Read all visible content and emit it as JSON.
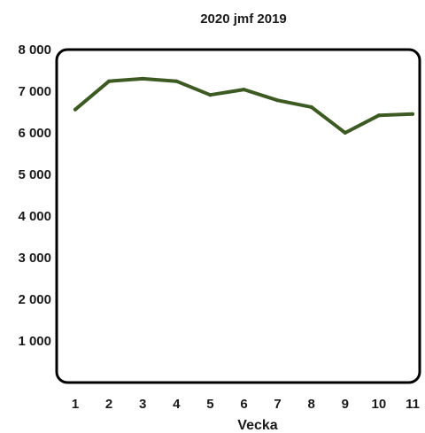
{
  "chart_data": {
    "type": "line",
    "title": "2020 jmf 2019",
    "xlabel": "Vecka",
    "ylabel": "",
    "categories": [
      "1",
      "2",
      "3",
      "4",
      "5",
      "6",
      "7",
      "8",
      "9",
      "10",
      "11"
    ],
    "values": [
      6560,
      7240,
      7300,
      7240,
      6910,
      7040,
      6780,
      6620,
      6000,
      6420,
      6450
    ],
    "ylim": [
      0,
      8000
    ],
    "yticks": [
      1000,
      2000,
      3000,
      4000,
      5000,
      6000,
      7000,
      8000
    ],
    "ytick_labels": [
      "1 000",
      "2 000",
      "3 000",
      "4 000",
      "5 000",
      "6 000",
      "7 000",
      "8 000"
    ],
    "line_color": "#3d5a22",
    "grid": false,
    "legend": "none"
  }
}
